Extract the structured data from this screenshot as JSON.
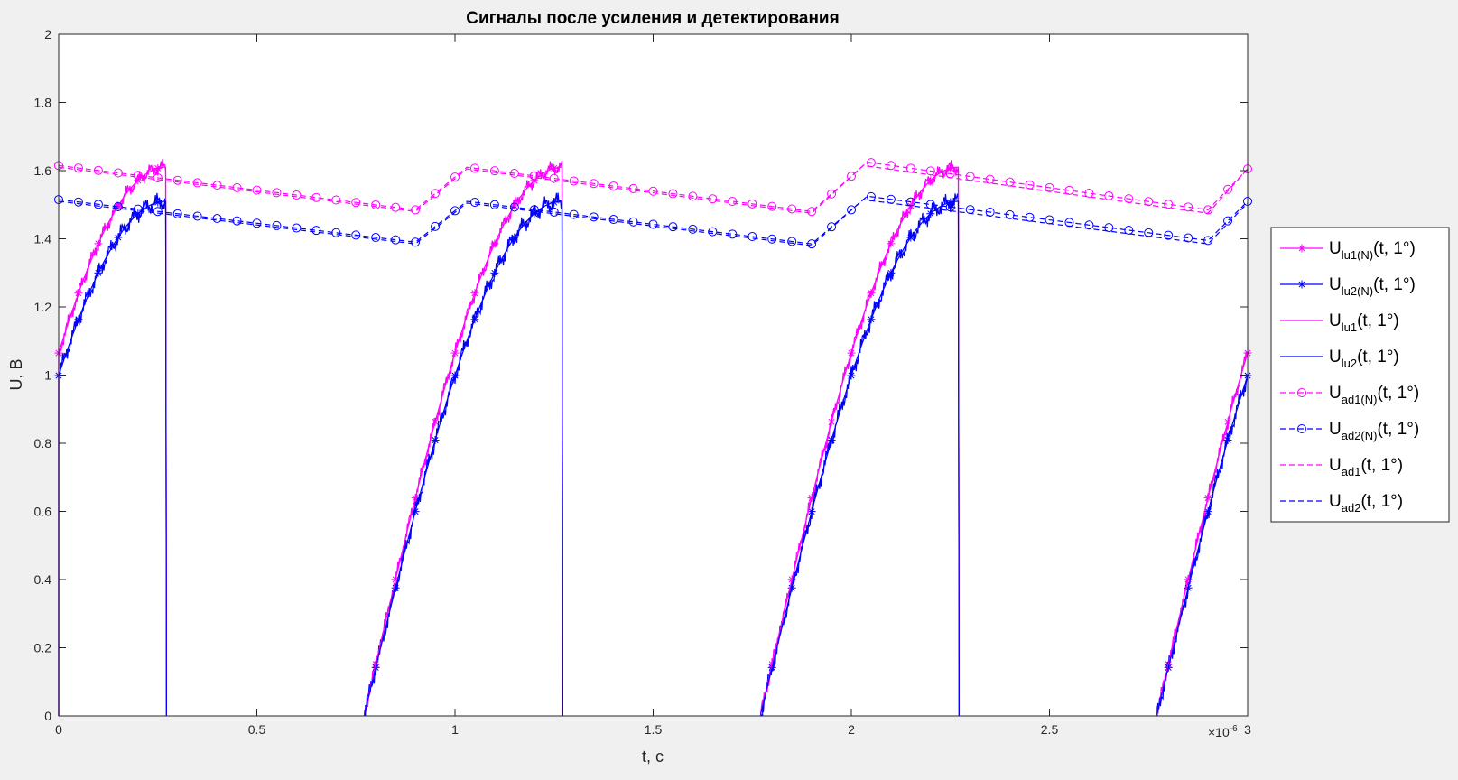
{
  "chart_data": {
    "type": "line",
    "title": "Сигналы после усиления и детектирования",
    "xlabel": "t, c",
    "ylabel": "U, B",
    "x_exponent_label": "×10",
    "x_exponent_power": "-6",
    "xlim": [
      0,
      3
    ],
    "ylim": [
      0,
      2
    ],
    "xticks": [
      0,
      0.5,
      1,
      1.5,
      2,
      2.5,
      3
    ],
    "xtick_labels": [
      "0",
      "0.5",
      "1",
      "1.5",
      "2",
      "2.5",
      "3"
    ],
    "yticks": [
      0,
      0.2,
      0.4,
      0.6,
      0.8,
      1,
      1.2,
      1.4,
      1.6,
      1.8,
      2
    ],
    "ytick_labels": [
      "0",
      "0.2",
      "0.4",
      "0.6",
      "0.8",
      "1",
      "1.2",
      "1.4",
      "1.6",
      "1.8",
      "2"
    ],
    "grid": false,
    "legend_position": "outside-right",
    "colors": {
      "magenta": "#ff00ff",
      "blue": "#0000ff"
    },
    "series": [
      {
        "name": "U_lu1(N)(t, 1°)",
        "label_main": "U",
        "label_sub": "lu1(N)",
        "label_tail": "(t, 1°)",
        "color": "#ff00ff",
        "style": "solid",
        "marker": "asterisk",
        "kind": "rect",
        "amp": 1.61,
        "noise": 0.025,
        "markers_on": true
      },
      {
        "name": "U_lu2(N)(t, 1°)",
        "label_main": "U",
        "label_sub": "lu2(N)",
        "label_tail": "(t, 1°)",
        "color": "#0000ff",
        "style": "solid",
        "marker": "asterisk",
        "kind": "rect",
        "amp": 1.51,
        "noise": 0.03,
        "markers_on": true
      },
      {
        "name": "U_lu1(t, 1°)",
        "label_main": "U",
        "label_sub": "lu1",
        "label_tail": "(t, 1°)",
        "color": "#ff00ff",
        "style": "solid",
        "marker": "none",
        "kind": "rect",
        "amp": 1.61,
        "noise": 0,
        "markers_on": false
      },
      {
        "name": "U_lu2(t, 1°)",
        "label_main": "U",
        "label_sub": "lu2",
        "label_tail": "(t, 1°)",
        "color": "#0000ff",
        "style": "solid",
        "marker": "none",
        "kind": "rect",
        "amp": 1.51,
        "noise": 0,
        "markers_on": false
      },
      {
        "name": "U_ad1(N)(t, 1°)",
        "label_main": "U",
        "label_sub": "ad1(N)",
        "label_tail": "(t, 1°)",
        "color": "#ff00ff",
        "style": "dashed",
        "marker": "circle",
        "kind": "env",
        "env_points": [
          [
            0,
            1.615
          ],
          [
            0.9,
            1.485
          ],
          [
            1.03,
            1.61
          ],
          [
            1.9,
            1.48
          ],
          [
            2.04,
            1.625
          ],
          [
            2.9,
            1.485
          ],
          [
            3,
            1.605
          ]
        ],
        "markers_on": true
      },
      {
        "name": "U_ad2(N)(t, 1°)",
        "label_main": "U",
        "label_sub": "ad2(N)",
        "label_tail": "(t, 1°)",
        "color": "#0000ff",
        "style": "dashed",
        "marker": "circle",
        "kind": "env",
        "env_points": [
          [
            0,
            1.515
          ],
          [
            0.9,
            1.39
          ],
          [
            1.03,
            1.51
          ],
          [
            1.9,
            1.385
          ],
          [
            2.04,
            1.525
          ],
          [
            2.9,
            1.395
          ],
          [
            3,
            1.51
          ]
        ],
        "markers_on": true
      },
      {
        "name": "U_ad1(t, 1°)",
        "label_main": "U",
        "label_sub": "ad1",
        "label_tail": "(t, 1°)",
        "color": "#ff00ff",
        "style": "dashed",
        "marker": "none",
        "kind": "env",
        "env_points": [
          [
            0,
            1.61
          ],
          [
            0.9,
            1.48
          ],
          [
            1.03,
            1.605
          ],
          [
            1.9,
            1.475
          ],
          [
            2.03,
            1.615
          ],
          [
            2.9,
            1.475
          ],
          [
            3,
            1.605
          ]
        ],
        "markers_on": false
      },
      {
        "name": "U_ad2(t, 1°)",
        "label_main": "U",
        "label_sub": "ad2",
        "label_tail": "(t, 1°)",
        "color": "#0000ff",
        "style": "dashed",
        "marker": "none",
        "kind": "env",
        "env_points": [
          [
            0,
            1.51
          ],
          [
            0.9,
            1.385
          ],
          [
            1.03,
            1.505
          ],
          [
            1.9,
            1.38
          ],
          [
            2.03,
            1.515
          ],
          [
            2.9,
            1.385
          ],
          [
            3,
            1.505
          ]
        ],
        "markers_on": false
      }
    ]
  }
}
